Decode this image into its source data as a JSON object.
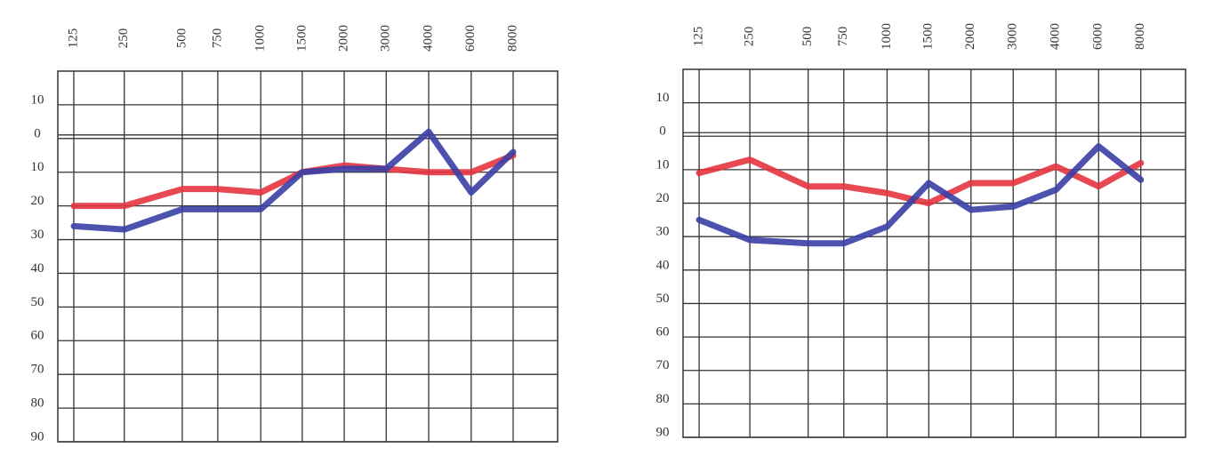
{
  "chart_data": [
    {
      "type": "line",
      "categories": [
        "125",
        "250",
        "500",
        "750",
        "1000",
        "1500",
        "2000",
        "3000",
        "4000",
        "6000",
        "8000"
      ],
      "ylim": [
        -20,
        90
      ],
      "y_inverted": true,
      "yticks": [
        {
          "value": -10,
          "label": "10"
        },
        0,
        10,
        20,
        30,
        40,
        50,
        60,
        70,
        80,
        90
      ],
      "grid": true,
      "series": [
        {
          "color": "#e5343f",
          "values": [
            20,
            20,
            15,
            15,
            16,
            10,
            8,
            9,
            10,
            10,
            5
          ]
        },
        {
          "color": "#3a3fa6",
          "values": [
            26,
            27,
            21,
            21,
            21,
            10,
            9,
            9,
            -2,
            16,
            4
          ]
        }
      ]
    },
    {
      "type": "line",
      "categories": [
        "125",
        "250",
        "500",
        "750",
        "1000",
        "1500",
        "2000",
        "3000",
        "4000",
        "6000",
        "8000"
      ],
      "ylim": [
        -20,
        90
      ],
      "y_inverted": true,
      "yticks": [
        {
          "value": -10,
          "label": "10"
        },
        0,
        10,
        20,
        30,
        40,
        50,
        60,
        70,
        80,
        90
      ],
      "grid": true,
      "series": [
        {
          "color": "#e5343f",
          "values": [
            11,
            7,
            15,
            15,
            17,
            20,
            14,
            14,
            9,
            15,
            8
          ]
        },
        {
          "color": "#3a3fa6",
          "values": [
            25,
            31,
            32,
            32,
            27,
            14,
            22,
            21,
            16,
            3,
            13
          ]
        }
      ]
    }
  ]
}
